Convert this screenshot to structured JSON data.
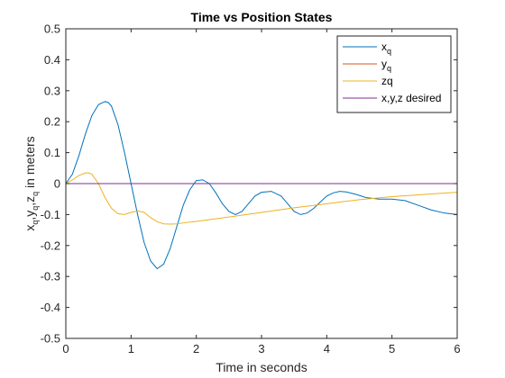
{
  "chart_data": {
    "type": "line",
    "title": "Time vs Position States",
    "xlabel": "Time in seconds",
    "ylabel": {
      "parts": [
        {
          "t": "x",
          "sub": false
        },
        {
          "t": "q",
          "sub": true
        },
        {
          "t": ",y",
          "sub": false
        },
        {
          "t": "q",
          "sub": true
        },
        {
          "t": ",z",
          "sub": false
        },
        {
          "t": "q",
          "sub": true
        },
        {
          "t": "  in meters",
          "sub": false
        }
      ]
    },
    "xlim": [
      0,
      6
    ],
    "ylim": [
      -0.5,
      0.5
    ],
    "xticks": [
      "0",
      "1",
      "2",
      "3",
      "4",
      "5",
      "6"
    ],
    "yticks": [
      "-0.5",
      "-0.4",
      "-0.3",
      "-0.2",
      "-0.1",
      "0",
      "0.1",
      "0.2",
      "0.3",
      "0.4",
      "0.5"
    ],
    "grid": false,
    "legend_position": "top-right",
    "series": [
      {
        "name": "x_q",
        "legend": {
          "main": "x",
          "sub": "q"
        },
        "color": "#0072BD",
        "x": [
          0,
          0.1,
          0.2,
          0.3,
          0.4,
          0.5,
          0.6,
          0.65,
          0.7,
          0.8,
          0.9,
          1.0,
          1.1,
          1.2,
          1.3,
          1.4,
          1.5,
          1.6,
          1.7,
          1.8,
          1.9,
          2.0,
          2.1,
          2.2,
          2.3,
          2.4,
          2.5,
          2.6,
          2.7,
          2.8,
          2.9,
          3.0,
          3.15,
          3.3,
          3.4,
          3.5,
          3.6,
          3.7,
          3.8,
          3.9,
          4.0,
          4.1,
          4.2,
          4.3,
          4.45,
          4.6,
          4.8,
          5.0,
          5.2,
          5.4,
          5.6,
          5.8,
          6.0
        ],
        "y": [
          0,
          0.03,
          0.09,
          0.16,
          0.22,
          0.255,
          0.265,
          0.262,
          0.25,
          0.19,
          0.1,
          0.0,
          -0.1,
          -0.19,
          -0.25,
          -0.275,
          -0.26,
          -0.21,
          -0.14,
          -0.07,
          -0.02,
          0.01,
          0.012,
          0.0,
          -0.03,
          -0.065,
          -0.09,
          -0.1,
          -0.09,
          -0.065,
          -0.04,
          -0.028,
          -0.025,
          -0.04,
          -0.065,
          -0.09,
          -0.1,
          -0.095,
          -0.08,
          -0.06,
          -0.04,
          -0.03,
          -0.025,
          -0.027,
          -0.035,
          -0.045,
          -0.05,
          -0.05,
          -0.055,
          -0.07,
          -0.085,
          -0.095,
          -0.1
        ]
      },
      {
        "name": "y_q",
        "legend": {
          "main": "y",
          "sub": "q"
        },
        "color": "#D95319",
        "x": [
          0,
          6
        ],
        "y": [
          0,
          0
        ]
      },
      {
        "name": "zq",
        "legend": {
          "main": "zq",
          "sub": ""
        },
        "color": "#EDB120",
        "x": [
          0,
          0.1,
          0.2,
          0.3,
          0.35,
          0.4,
          0.5,
          0.6,
          0.7,
          0.8,
          0.9,
          1.0,
          1.1,
          1.2,
          1.3,
          1.4,
          1.5,
          1.6,
          1.7,
          1.8,
          2.0,
          2.5,
          3.0,
          3.5,
          4.0,
          4.5,
          5.0,
          5.5,
          6.0
        ],
        "y": [
          0,
          0.012,
          0.026,
          0.034,
          0.035,
          0.03,
          0.0,
          -0.045,
          -0.08,
          -0.097,
          -0.1,
          -0.093,
          -0.088,
          -0.093,
          -0.11,
          -0.123,
          -0.13,
          -0.131,
          -0.13,
          -0.127,
          -0.122,
          -0.108,
          -0.093,
          -0.078,
          -0.065,
          -0.052,
          -0.042,
          -0.035,
          -0.028
        ]
      },
      {
        "name": "x,y,z desired",
        "legend": {
          "main": "x,y,z desired",
          "sub": ""
        },
        "color": "#7E2F8E",
        "x": [
          0,
          6
        ],
        "y": [
          0,
          0
        ]
      }
    ]
  }
}
